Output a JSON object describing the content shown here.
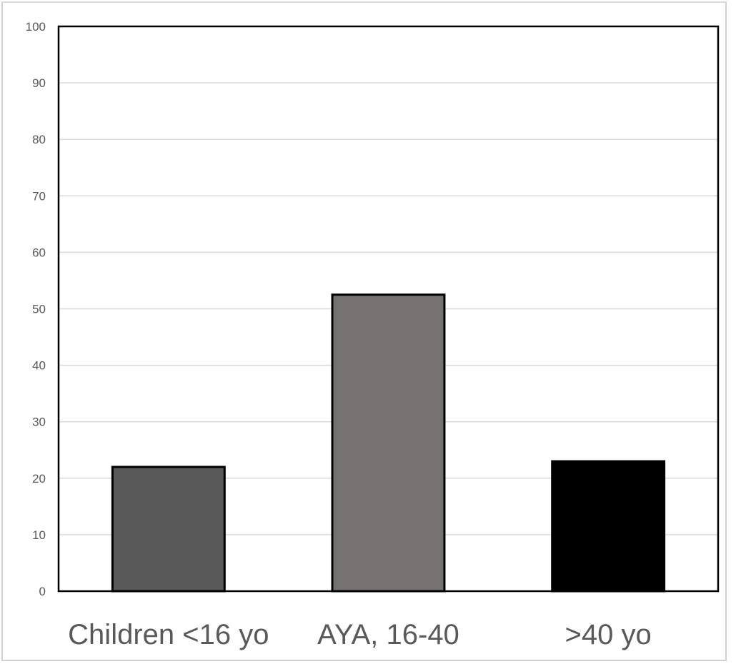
{
  "chart_data": {
    "type": "bar",
    "categories": [
      "Children <16 yo",
      "AYA, 16-40",
      ">40 yo"
    ],
    "values": [
      22,
      52.5,
      23
    ],
    "bar_colors": [
      "#595959",
      "#767171",
      "#000000"
    ],
    "bar_outline_color": "#000000",
    "ylim": [
      0,
      100
    ],
    "yticks": [
      0,
      10,
      20,
      30,
      40,
      50,
      60,
      70,
      80,
      90,
      100
    ],
    "grid": true,
    "gridline_color": "#d9d9d9",
    "title": "",
    "xlabel": "",
    "ylabel": "",
    "legend": "none"
  }
}
